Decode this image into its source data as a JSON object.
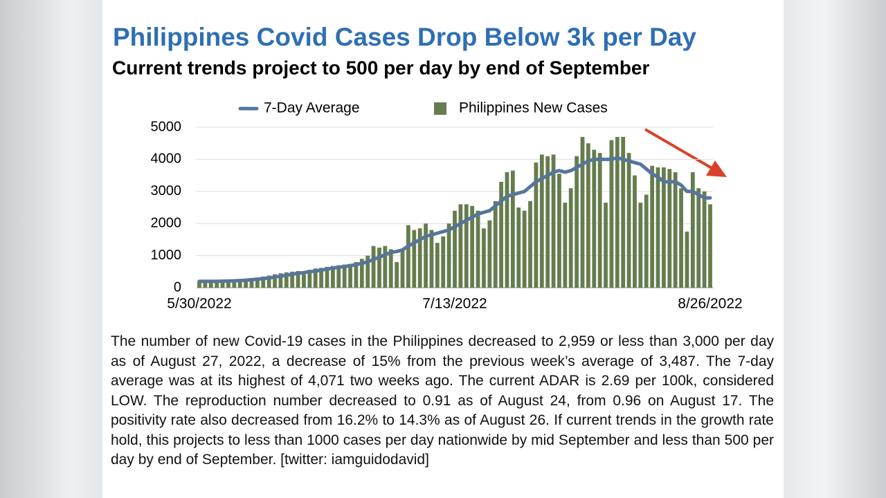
{
  "chart_data": {
    "type": "bar",
    "title": "Philippines Covid Cases Drop Below 3k per Day",
    "subtitle": "Current trends project to 500 per day by end of September",
    "categories": [
      "5/30/2022",
      null,
      null,
      null,
      null,
      null,
      null,
      null,
      null,
      null,
      null,
      null,
      null,
      null,
      null,
      null,
      null,
      null,
      null,
      null,
      null,
      null,
      null,
      null,
      null,
      null,
      null,
      null,
      null,
      null,
      null,
      null,
      null,
      null,
      null,
      null,
      null,
      null,
      null,
      null,
      null,
      null,
      null,
      null,
      "7/13/2022",
      null,
      null,
      null,
      null,
      null,
      null,
      null,
      null,
      null,
      null,
      null,
      null,
      null,
      null,
      null,
      null,
      null,
      null,
      null,
      null,
      null,
      null,
      null,
      null,
      null,
      null,
      null,
      null,
      null,
      null,
      null,
      null,
      null,
      null,
      null,
      null,
      null,
      null,
      null,
      null,
      null,
      null,
      null,
      "8/26/2022"
    ],
    "series": [
      {
        "name": "7-Day Average",
        "type": "line",
        "color": "#56759a",
        "values": [
          200,
          200,
          200,
          200,
          205,
          210,
          215,
          225,
          235,
          250,
          265,
          285,
          305,
          330,
          360,
          390,
          420,
          450,
          470,
          500,
          520,
          550,
          580,
          610,
          640,
          660,
          690,
          720,
          760,
          810,
          880,
          950,
          1030,
          1100,
          1130,
          1180,
          1300,
          1400,
          1500,
          1600,
          1650,
          1700,
          1750,
          1800,
          1900,
          2000,
          2100,
          2200,
          2300,
          2350,
          2400,
          2550,
          2700,
          2850,
          2900,
          2950,
          3000,
          3150,
          3300,
          3400,
          3500,
          3600,
          3650,
          3600,
          3650,
          3750,
          3850,
          3950,
          4000,
          4000,
          4000,
          4000,
          4050,
          4000,
          3950,
          3900,
          3850,
          3700,
          3550,
          3450,
          3300,
          3300,
          3300,
          3200,
          3000,
          3000,
          2900,
          2800,
          2800
        ]
      },
      {
        "name": "Philippines New Cases",
        "type": "bar",
        "color": "#657d4e",
        "values": [
          210,
          220,
          200,
          190,
          230,
          240,
          250,
          260,
          280,
          300,
          320,
          350,
          380,
          420,
          450,
          480,
          500,
          520,
          420,
          560,
          600,
          620,
          650,
          680,
          700,
          720,
          740,
          800,
          900,
          1000,
          1300,
          1250,
          1300,
          1200,
          800,
          1200,
          1950,
          1800,
          1850,
          2000,
          1800,
          1400,
          1600,
          2000,
          2400,
          2600,
          2600,
          2550,
          2400,
          1850,
          2100,
          2700,
          3300,
          3600,
          3650,
          2500,
          2400,
          2700,
          3900,
          4150,
          4100,
          4150,
          3550,
          2650,
          3100,
          4100,
          4700,
          4500,
          4300,
          4200,
          2650,
          4600,
          4700,
          4700,
          4200,
          3500,
          2650,
          2900,
          3800,
          3750,
          3750,
          3700,
          3600,
          3100,
          1750,
          3600,
          3100,
          3000,
          2600
        ]
      }
    ],
    "ylim": [
      0,
      5000
    ],
    "yticks": [
      0,
      1000,
      2000,
      3000,
      4000,
      5000
    ],
    "grid": true,
    "description": "The number of new Covid-19 cases in the Philippines decreased to 2,959 or less than 3,000 per day as of August 27, 2022, a decrease of 15% from the previous week’s average of 3,487. The 7-day average was at its highest of 4,071 two weeks ago. The current ADAR is 2.69 per 100k, considered LOW. The reproduction number decreased to 0.91 as of August 24, from 0.96 on August 17. The positivity rate also decreased from 16.2% to 14.3% as of August 26. If current trends in the growth rate hold, this projects to less than 1000 cases per day nationwide by mid September and less than 500 per day by end of September.  [twitter: iamguidodavid]"
  }
}
